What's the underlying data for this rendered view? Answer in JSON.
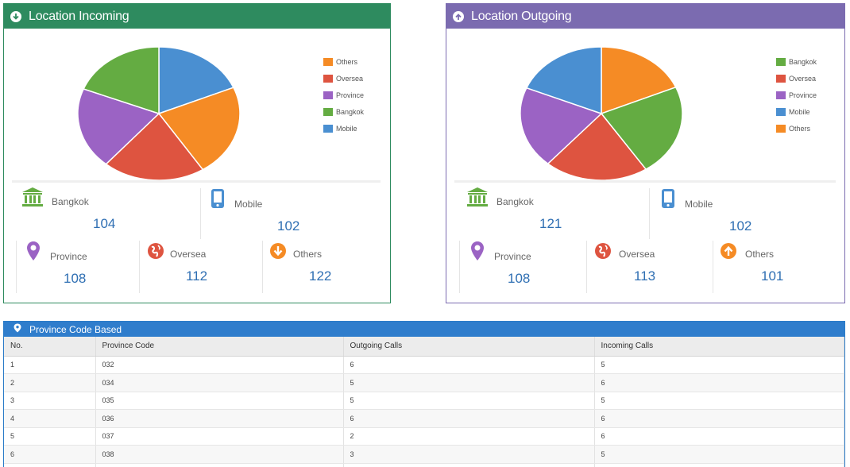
{
  "incoming": {
    "title": "Location Incoming",
    "legend": [
      {
        "label": "Others",
        "color": "#f58b25"
      },
      {
        "label": "Oversea",
        "color": "#de5440"
      },
      {
        "label": "Province",
        "color": "#9b63c4"
      },
      {
        "label": "Bangkok",
        "color": "#64ac42"
      },
      {
        "label": "Mobile",
        "color": "#4a8fd1"
      }
    ],
    "stats": {
      "bangkok": {
        "label": "Bangkok",
        "value": "104"
      },
      "mobile": {
        "label": "Mobile",
        "value": "102"
      },
      "province": {
        "label": "Province",
        "value": "108"
      },
      "oversea": {
        "label": "Oversea",
        "value": "112"
      },
      "others": {
        "label": "Others",
        "value": "122"
      }
    }
  },
  "outgoing": {
    "title": "Location Outgoing",
    "legend": [
      {
        "label": "Bangkok",
        "color": "#64ac42"
      },
      {
        "label": "Oversea",
        "color": "#de5440"
      },
      {
        "label": "Province",
        "color": "#9b63c4"
      },
      {
        "label": "Mobile",
        "color": "#4a8fd1"
      },
      {
        "label": "Others",
        "color": "#f58b25"
      }
    ],
    "stats": {
      "bangkok": {
        "label": "Bangkok",
        "value": "121"
      },
      "mobile": {
        "label": "Mobile",
        "value": "102"
      },
      "province": {
        "label": "Province",
        "value": "108"
      },
      "oversea": {
        "label": "Oversea",
        "value": "113"
      },
      "others": {
        "label": "Others",
        "value": "101"
      }
    }
  },
  "chart_data": [
    {
      "type": "pie",
      "categories": [
        "Mobile",
        "Others",
        "Oversea",
        "Province",
        "Bangkok"
      ],
      "values": [
        102,
        122,
        112,
        108,
        104
      ],
      "colors": [
        "#4a8fd1",
        "#f58b25",
        "#de5440",
        "#9b63c4",
        "#64ac42"
      ],
      "legend_position": "right"
    },
    {
      "type": "pie",
      "categories": [
        "Others",
        "Bangkok",
        "Oversea",
        "Province",
        "Mobile"
      ],
      "values": [
        101,
        121,
        113,
        108,
        102
      ],
      "colors": [
        "#f58b25",
        "#64ac42",
        "#de5440",
        "#9b63c4",
        "#4a8fd1"
      ],
      "legend_position": "right"
    }
  ],
  "province_table": {
    "title": "Province Code Based",
    "columns": [
      "No.",
      "Province Code",
      "Outgoing Calls",
      "Incoming Calls"
    ],
    "rows": [
      [
        "1",
        "032",
        "6",
        "5"
      ],
      [
        "2",
        "034",
        "5",
        "6"
      ],
      [
        "3",
        "035",
        "5",
        "5"
      ],
      [
        "4",
        "036",
        "6",
        "6"
      ],
      [
        "5",
        "037",
        "2",
        "6"
      ],
      [
        "6",
        "038",
        "3",
        "5"
      ],
      [
        "",
        "",
        "",
        ""
      ]
    ]
  }
}
